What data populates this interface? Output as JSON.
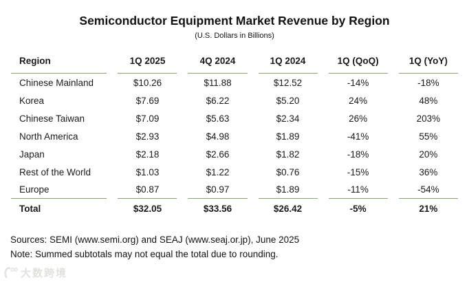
{
  "title": "Semiconductor Equipment Market Revenue by Region",
  "subtitle": "(U.S. Dollars in Billions)",
  "table": {
    "columns": [
      "Region",
      "1Q 2025",
      "4Q 2024",
      "1Q 2024",
      "1Q (QoQ)",
      "1Q (YoY)"
    ],
    "rows": [
      {
        "region": "Chinese Mainland",
        "values": [
          "$10.26",
          "$11.88",
          "$12.52",
          "-14%",
          "-18%"
        ]
      },
      {
        "region": "Korea",
        "values": [
          "$7.69",
          "$6.22",
          "$5.20",
          "24%",
          "48%"
        ]
      },
      {
        "region": "Chinese Taiwan",
        "values": [
          "$7.09",
          "$5.63",
          "$2.34",
          "26%",
          "203%"
        ]
      },
      {
        "region": "North America",
        "values": [
          "$2.93",
          "$4.98",
          "$1.89",
          "-41%",
          "55%"
        ]
      },
      {
        "region": "Japan",
        "values": [
          "$2.18",
          "$2.66",
          "$1.82",
          "-18%",
          "20%"
        ]
      },
      {
        "region": "Rest of the World",
        "values": [
          "$1.03",
          "$1.22",
          "$0.76",
          "-15%",
          "36%"
        ]
      },
      {
        "region": "Europe",
        "values": [
          "$0.87",
          "$0.97",
          "$1.89",
          "-11%",
          "-54%"
        ]
      }
    ],
    "total_row": {
      "region": "Total",
      "values": [
        "$32.05",
        "$33.56",
        "$26.42",
        "-5%",
        "21%"
      ]
    }
  },
  "footer": {
    "sources": "Sources: SEMI (www.semi.org) and SEAJ (www.seaj.or.jp), June 2025",
    "note": "Note: Summed subtotals may not equal the total due to rounding."
  },
  "watermark": {
    "icon": "claw-logo-icon",
    "text": "大数跨境"
  },
  "colors": {
    "rule_green": "#83a471",
    "text": "#111111",
    "watermark_gray": "#e2e2dd"
  },
  "chart_data": {
    "type": "table",
    "title": "Semiconductor Equipment Market Revenue by Region",
    "subtitle": "(U.S. Dollars in Billions)",
    "columns": [
      "Region",
      "1Q 2025",
      "4Q 2024",
      "1Q 2024",
      "1Q (QoQ)",
      "1Q (YoY)"
    ],
    "rows": [
      [
        "Chinese Mainland",
        10.26,
        11.88,
        12.52,
        -14,
        -18
      ],
      [
        "Korea",
        7.69,
        6.22,
        5.2,
        24,
        48
      ],
      [
        "Chinese Taiwan",
        7.09,
        5.63,
        2.34,
        26,
        203
      ],
      [
        "North America",
        2.93,
        4.98,
        1.89,
        -41,
        55
      ],
      [
        "Japan",
        2.18,
        2.66,
        1.82,
        -18,
        20
      ],
      [
        "Rest of the World",
        1.03,
        1.22,
        0.76,
        -15,
        36
      ],
      [
        "Europe",
        0.87,
        0.97,
        1.89,
        -11,
        -54
      ],
      [
        "Total",
        32.05,
        33.56,
        26.42,
        -5,
        21
      ]
    ],
    "units": "USD billions; QoQ and YoY columns in percent"
  }
}
